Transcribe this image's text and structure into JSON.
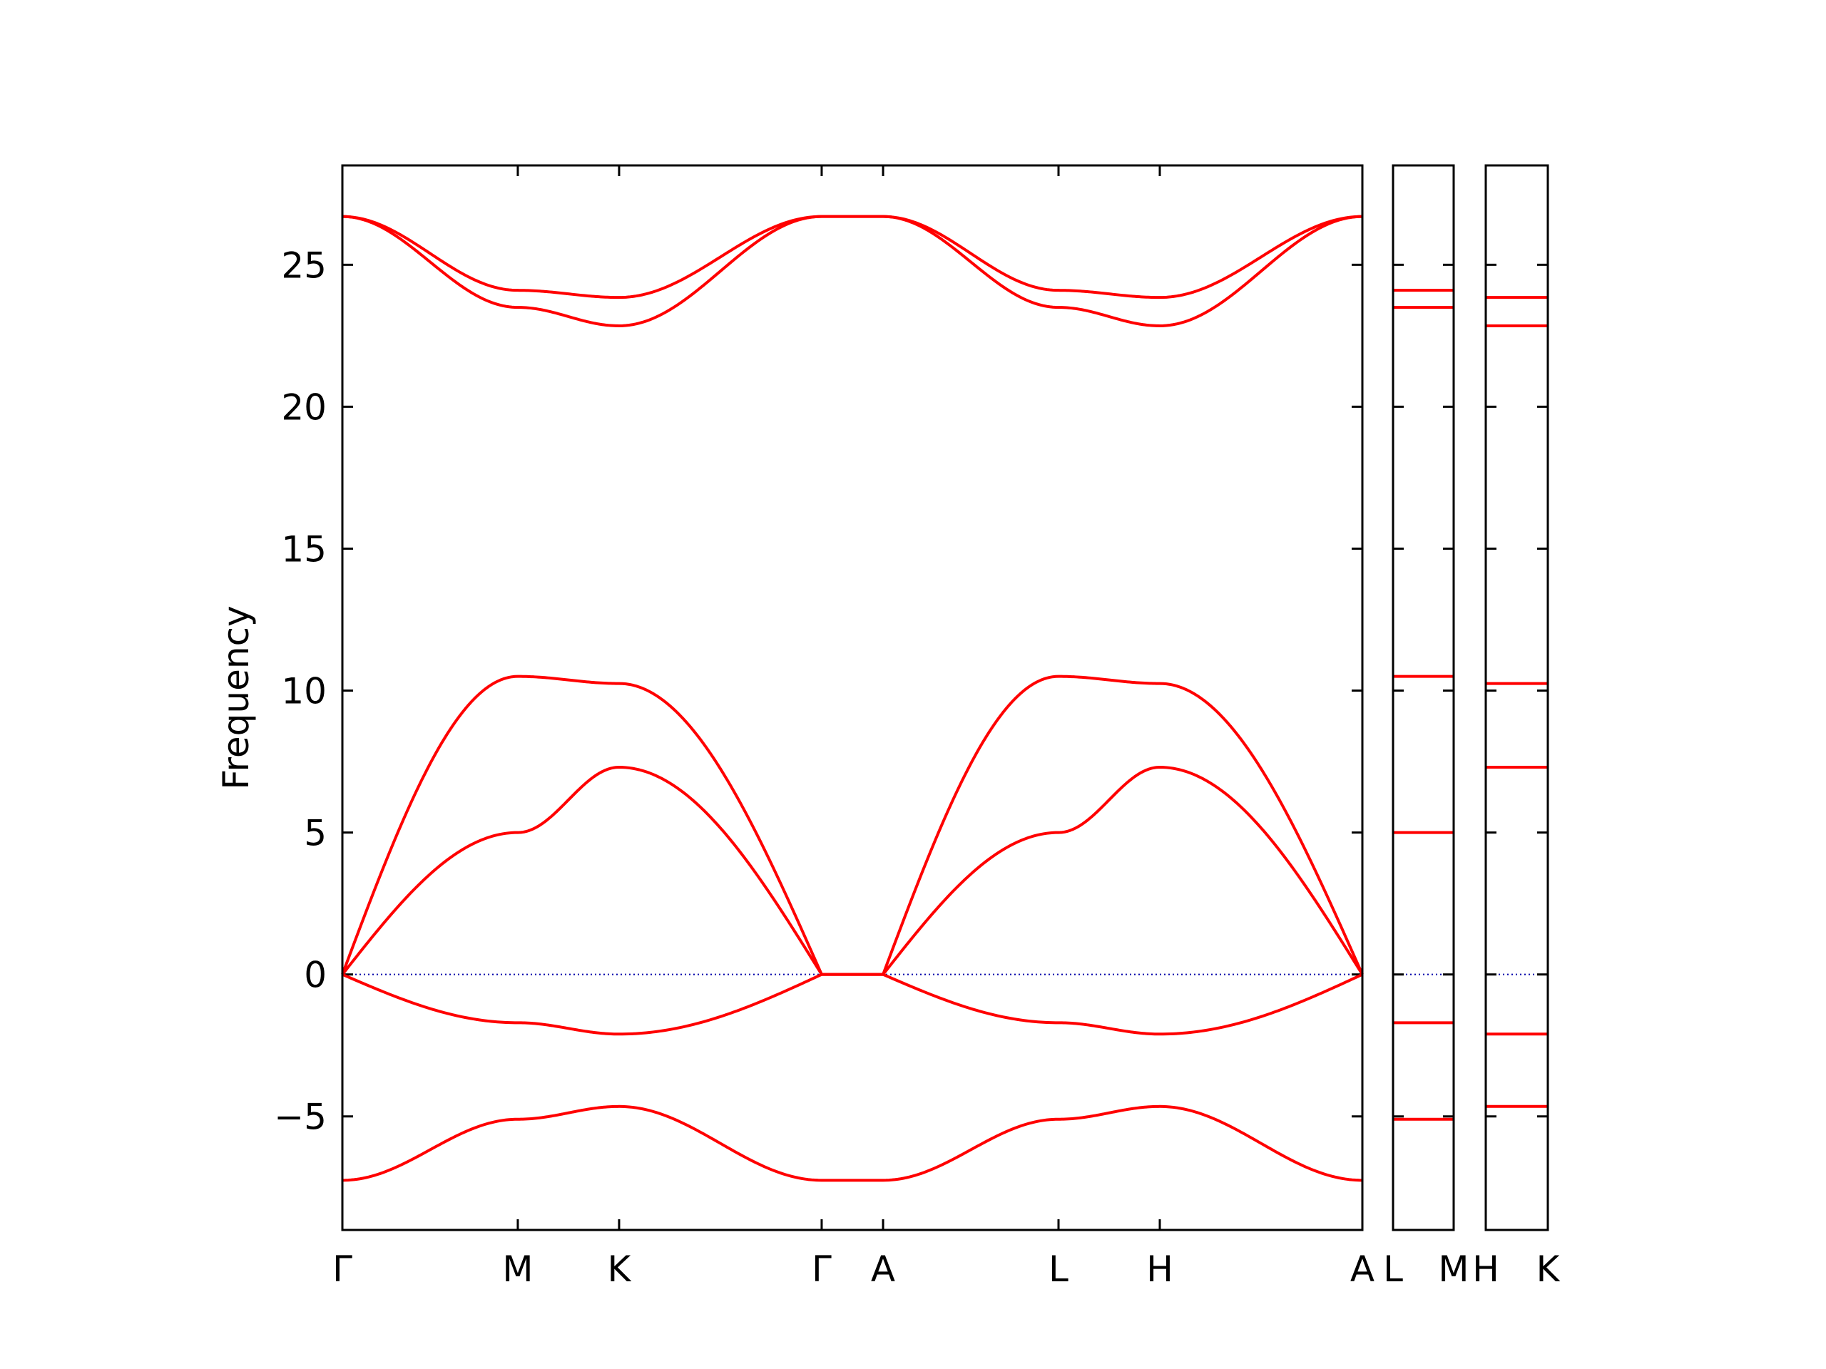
{
  "chart_data": {
    "type": "line",
    "ylabel": "Frequency",
    "ylim": [
      -9.0,
      28.5
    ],
    "yticks": [
      -5,
      0,
      5,
      10,
      15,
      20,
      25
    ],
    "ytick_labels": [
      "−5",
      "0",
      "5",
      "10",
      "15",
      "20",
      "25"
    ],
    "colors": {
      "band": "#ff0000",
      "zero_line": "#0000aa",
      "frame": "#000000"
    },
    "zero_line": 0,
    "main_path": {
      "points": [
        {
          "label": "Γ",
          "pos": 0
        },
        {
          "label": "M",
          "pos": 1
        },
        {
          "label": "K",
          "pos": 1.5774
        },
        {
          "label": "Γ",
          "pos": 2.7321
        },
        {
          "label": "A",
          "pos": 3.0821
        },
        {
          "label": "L",
          "pos": 4.0821
        },
        {
          "label": "H",
          "pos": 4.6595
        },
        {
          "label": "A",
          "pos": 5.8142
        }
      ],
      "bands": [
        {
          "values": [
            -7.25,
            -5.1,
            -4.65,
            -7.25,
            -7.25,
            -5.1,
            -4.65,
            -7.25
          ]
        },
        {
          "values": [
            0,
            -1.7,
            -2.1,
            0,
            0,
            -1.7,
            -2.1,
            0
          ]
        },
        {
          "values": [
            0,
            5.0,
            7.3,
            0,
            0,
            5.0,
            7.3,
            0
          ]
        },
        {
          "values": [
            0,
            10.5,
            10.25,
            0,
            0,
            10.5,
            10.25,
            0
          ]
        },
        {
          "values": [
            26.7,
            23.5,
            22.85,
            26.7,
            26.7,
            23.5,
            22.85,
            26.7
          ]
        },
        {
          "values": [
            26.7,
            24.1,
            23.85,
            26.7,
            26.7,
            24.1,
            23.85,
            26.7
          ]
        }
      ]
    },
    "side_panels": [
      {
        "labels": [
          "L",
          "M"
        ],
        "values": [
          -5.1,
          -1.7,
          5.0,
          10.5,
          23.5,
          24.1
        ]
      },
      {
        "labels": [
          "H",
          "K"
        ],
        "values": [
          -4.65,
          -2.1,
          7.3,
          10.25,
          22.85,
          23.85
        ]
      }
    ]
  }
}
